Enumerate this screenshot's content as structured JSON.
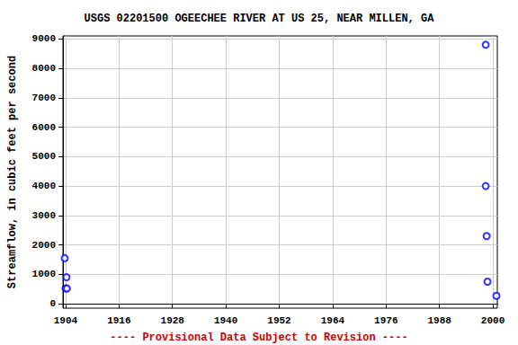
{
  "chart_data": {
    "type": "scatter",
    "title": "USGS 02201500 OGEECHEE RIVER AT US 25, NEAR MILLEN, GA",
    "y_label": "Streamflow, in cubic feet per second",
    "annotations": [
      "---- Provisional Data Subject to Revision ----"
    ],
    "x": [
      1903.8,
      1904.2,
      1904.0,
      1904.3,
      1998.4,
      1998.4,
      1998.6,
      1998.8,
      2000.8
    ],
    "values": [
      1550,
      900,
      520,
      520,
      8800,
      4000,
      2300,
      750,
      270
    ],
    "color": "#0000ff",
    "marker": "open_circle",
    "xlim": [
      1903.4,
      2001
    ],
    "xticks": [
      1904,
      1916,
      1928,
      1940,
      1952,
      1964,
      1976,
      1988,
      2000
    ],
    "ylim": [
      -150,
      9100
    ],
    "yticks": [
      0,
      1000,
      2000,
      3000,
      4000,
      5000,
      6000,
      7000,
      8000,
      9000
    ],
    "grid": true
  }
}
